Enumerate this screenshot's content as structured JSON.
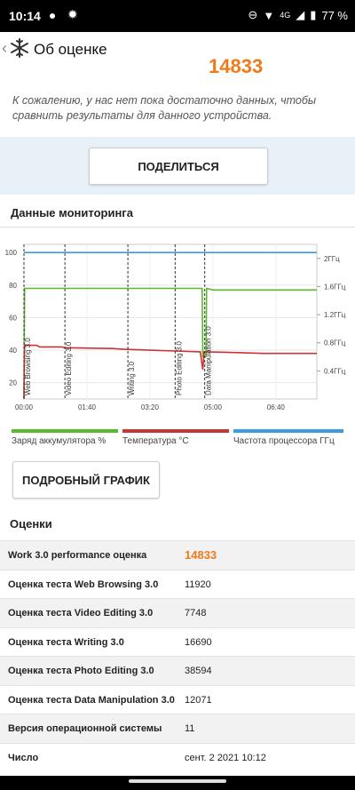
{
  "status": {
    "time": "10:14",
    "network": "4G",
    "battery": "77 %"
  },
  "header": {
    "title": "Об оценке"
  },
  "score": {
    "peek_value": "14833",
    "note": "К сожалению, у нас нет пока достаточно данных, чтобы сравнить результаты для данного устройства."
  },
  "share_label": "ПОДЕЛИТЬСЯ",
  "monitoring": {
    "title": "Данные мониторинга",
    "legend": [
      "Заряд аккумулятора %",
      "Температура °C",
      "Частота процессора ГГц"
    ],
    "detail_label": "ПОДРОБНЫЙ ГРАФИК"
  },
  "chart_data": {
    "type": "line",
    "x_ticks": [
      "00:00",
      "01:40",
      "03:20",
      "05:00",
      "06:40"
    ],
    "y_left_ticks": [
      "100",
      "80",
      "60",
      "40",
      "20"
    ],
    "y_right_ticks": [
      "2ГГц",
      "1.6ГГц",
      "1.2ГГц",
      "0.8ГГц",
      "0.4ГГц"
    ],
    "ylim_left": [
      10,
      105
    ],
    "ylim_right": [
      0,
      2.2
    ],
    "xlim_minutes": [
      0,
      465
    ],
    "markers": [
      {
        "label": "Web Browsing 3.0",
        "t": 0
      },
      {
        "label": "Video Editing 3.0",
        "t": 65
      },
      {
        "label": "Writing 3.0",
        "t": 165
      },
      {
        "label": "Photo Editing 3.0",
        "t": 240
      },
      {
        "label": "Data Manipulation 3.0",
        "t": 287
      }
    ],
    "series": [
      {
        "name": "Заряд аккумулятора %",
        "color": "#5cb82e",
        "axis": "left",
        "points": [
          [
            0,
            10
          ],
          [
            1,
            78
          ],
          [
            283,
            78
          ],
          [
            284,
            36
          ],
          [
            289,
            36
          ],
          [
            290,
            78
          ],
          [
            300,
            77
          ],
          [
            465,
            77
          ]
        ]
      },
      {
        "name": "Температура °C",
        "color": "#c93434",
        "axis": "left",
        "points": [
          [
            0,
            10
          ],
          [
            1,
            43
          ],
          [
            20,
            43
          ],
          [
            25,
            42
          ],
          [
            60,
            42
          ],
          [
            65,
            41.5
          ],
          [
            140,
            41
          ],
          [
            160,
            40.5
          ],
          [
            200,
            40
          ],
          [
            240,
            39.5
          ],
          [
            280,
            39
          ],
          [
            284,
            28
          ],
          [
            286,
            39
          ],
          [
            340,
            38.5
          ],
          [
            380,
            38
          ],
          [
            465,
            38
          ]
        ]
      },
      {
        "name": "Частота процессора ГГц",
        "color": "#3a9be0",
        "axis": "left",
        "points": [
          [
            0,
            100
          ],
          [
            465,
            100
          ]
        ]
      }
    ]
  },
  "scores": {
    "title": "Оценки",
    "rows": [
      {
        "k": "Work 3.0 performance оценка",
        "v": "14833"
      },
      {
        "k": "Оценка теста Web Browsing 3.0",
        "v": "11920"
      },
      {
        "k": "Оценка теста Video Editing 3.0",
        "v": "7748"
      },
      {
        "k": "Оценка теста Writing 3.0",
        "v": "16690"
      },
      {
        "k": "Оценка теста Photo Editing 3.0",
        "v": "38594"
      },
      {
        "k": "Оценка теста Data Manipulation 3.0",
        "v": "12071"
      },
      {
        "k": "Версия операционной системы",
        "v": "11"
      },
      {
        "k": "Число",
        "v": "сент. 2 2021 10:12"
      }
    ]
  },
  "colors": {
    "accent": "#f07a1a",
    "battery": "#5cb82e",
    "temp": "#c93434",
    "cpu": "#3a9be0"
  }
}
